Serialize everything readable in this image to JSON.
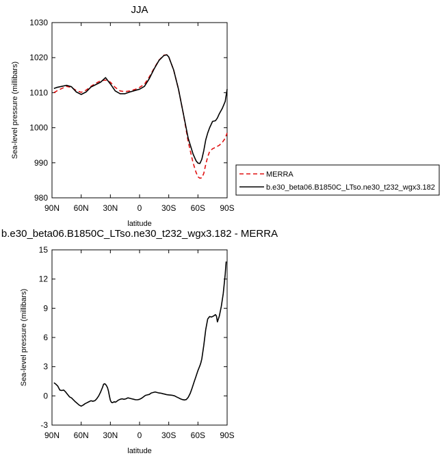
{
  "chart_data": [
    {
      "type": "line",
      "title": "JJA",
      "xlabel": "latitude",
      "ylabel": "Sea-level pressure (millibars)",
      "xlim": [
        90,
        -90
      ],
      "ylim": [
        980,
        1030
      ],
      "x_direction": "90N to 90S (latitude in degrees, north positive)",
      "xticks": [
        90,
        60,
        30,
        0,
        -30,
        -60,
        -90
      ],
      "xtick_labels": [
        "90N",
        "60N",
        "30N",
        "0",
        "30S",
        "60S",
        "90S"
      ],
      "yticks": [
        980,
        990,
        1000,
        1010,
        1020,
        1030
      ],
      "ytick_labels": [
        "980",
        "990",
        "1000",
        "1010",
        "1020",
        "1030"
      ],
      "legend_position": "right-outside",
      "series": [
        {
          "name": "MERRA",
          "color": "#e01010",
          "dash": "dashed",
          "x": [
            88,
            85,
            80,
            75,
            70,
            65,
            60,
            55,
            50,
            45,
            40,
            35,
            30,
            25,
            20,
            15,
            10,
            5,
            0,
            -5,
            -10,
            -15,
            -20,
            -25,
            -28,
            -30,
            -35,
            -40,
            -45,
            -50,
            -55,
            -58,
            -60,
            -62,
            -64,
            -66,
            -68,
            -70,
            -72,
            -75,
            -78,
            -80,
            -82,
            -85,
            -88,
            -90
          ],
          "y": [
            1010.0,
            1010.5,
            1011.2,
            1011.8,
            1011.5,
            1010.6,
            1010.1,
            1010.7,
            1011.8,
            1012.7,
            1013.4,
            1013.6,
            1013.0,
            1011.5,
            1010.5,
            1010.3,
            1010.5,
            1010.9,
            1011.5,
            1012.4,
            1014.5,
            1017.0,
            1019.3,
            1020.7,
            1020.8,
            1020.2,
            1016.5,
            1011.0,
            1004.0,
            996.0,
            990.0,
            987.3,
            986.0,
            985.6,
            985.7,
            987.0,
            989.5,
            991.7,
            993.2,
            994.0,
            994.4,
            994.7,
            995.0,
            995.8,
            997.0,
            998.5
          ]
        },
        {
          "name": "b.e30_beta06.B1850C_LTso.ne30_t232_wgx3.182",
          "color": "#000000",
          "dash": "solid",
          "x": [
            88,
            85,
            80,
            75,
            70,
            65,
            60,
            55,
            50,
            45,
            40,
            35,
            30,
            25,
            20,
            15,
            10,
            5,
            0,
            -5,
            -10,
            -15,
            -20,
            -25,
            -28,
            -30,
            -35,
            -40,
            -45,
            -50,
            -55,
            -58,
            -60,
            -62,
            -64,
            -66,
            -68,
            -70,
            -72,
            -75,
            -78,
            -80,
            -82,
            -85,
            -88,
            -90
          ],
          "y": [
            1011.2,
            1011.5,
            1011.8,
            1012.1,
            1011.7,
            1010.2,
            1009.5,
            1010.2,
            1011.6,
            1012.3,
            1013.0,
            1014.3,
            1012.5,
            1010.5,
            1009.7,
            1009.7,
            1010.2,
            1010.6,
            1011.0,
            1011.8,
            1014.0,
            1016.8,
            1019.2,
            1020.6,
            1020.8,
            1020.2,
            1016.5,
            1011.0,
            1004.0,
            997.0,
            992.5,
            990.6,
            989.9,
            989.8,
            991.0,
            993.5,
            996.5,
            998.5,
            1000.0,
            1001.8,
            1002.0,
            1002.8,
            1004.0,
            1005.5,
            1007.5,
            1011.0
          ]
        }
      ]
    },
    {
      "type": "line",
      "title": "b.e30_beta06.B1850C_LTso.ne30_t232_wgx3.182 - MERRA",
      "xlabel": "latitude",
      "ylabel": "Sea-level pressure (millibars)",
      "xlim": [
        90,
        -90
      ],
      "ylim": [
        -3,
        15
      ],
      "xticks": [
        90,
        60,
        30,
        0,
        -30,
        -60,
        -90
      ],
      "xtick_labels": [
        "90N",
        "60N",
        "30N",
        "0",
        "30S",
        "60S",
        "90S"
      ],
      "yticks": [
        -3,
        0,
        3,
        6,
        9,
        12,
        15
      ],
      "ytick_labels": [
        "-3",
        "0",
        "3",
        "6",
        "9",
        "12",
        "15"
      ],
      "series": [
        {
          "color": "#000000",
          "dash": "solid",
          "x": [
            88,
            86,
            84,
            82,
            80,
            78,
            76,
            74,
            72,
            70,
            66,
            62,
            60,
            58,
            56,
            54,
            52,
            50,
            48,
            46,
            44,
            42,
            40,
            38,
            37,
            36,
            35,
            34,
            33,
            32,
            31,
            30,
            29,
            28,
            27,
            26,
            25,
            24,
            22,
            20,
            18,
            16,
            14,
            12,
            10,
            8,
            6,
            4,
            2,
            0,
            -2,
            -4,
            -6,
            -8,
            -10,
            -12,
            -14,
            -16,
            -18,
            -20,
            -22,
            -24,
            -26,
            -28,
            -30,
            -32,
            -34,
            -36,
            -38,
            -40,
            -42,
            -44,
            -46,
            -48,
            -50,
            -52,
            -54,
            -56,
            -58,
            -60,
            -62,
            -63,
            -64,
            -66,
            -68,
            -70,
            -72,
            -74,
            -76,
            -78,
            -79,
            -80,
            -82,
            -84,
            -86,
            -88,
            -89
          ],
          "y": [
            1.35,
            1.2,
            1.0,
            0.6,
            0.55,
            0.6,
            0.4,
            0.15,
            -0.1,
            -0.2,
            -0.6,
            -0.95,
            -1.05,
            -0.95,
            -0.8,
            -0.7,
            -0.6,
            -0.5,
            -0.55,
            -0.5,
            -0.3,
            0.0,
            0.4,
            0.9,
            1.2,
            1.25,
            1.2,
            1.05,
            0.85,
            0.5,
            0.0,
            -0.45,
            -0.65,
            -0.7,
            -0.65,
            -0.6,
            -0.65,
            -0.6,
            -0.45,
            -0.35,
            -0.3,
            -0.35,
            -0.3,
            -0.2,
            -0.25,
            -0.3,
            -0.35,
            -0.4,
            -0.4,
            -0.35,
            -0.25,
            -0.1,
            0.05,
            0.1,
            0.15,
            0.3,
            0.35,
            0.4,
            0.35,
            0.3,
            0.28,
            0.22,
            0.18,
            0.12,
            0.1,
            0.08,
            0.05,
            0.0,
            -0.1,
            -0.2,
            -0.3,
            -0.38,
            -0.42,
            -0.38,
            -0.15,
            0.25,
            0.8,
            1.4,
            2.0,
            2.6,
            3.1,
            3.4,
            3.8,
            5.2,
            6.8,
            7.9,
            8.15,
            8.1,
            8.2,
            8.35,
            8.2,
            7.6,
            8.2,
            9.2,
            10.5,
            12.5,
            13.8
          ]
        }
      ]
    }
  ]
}
